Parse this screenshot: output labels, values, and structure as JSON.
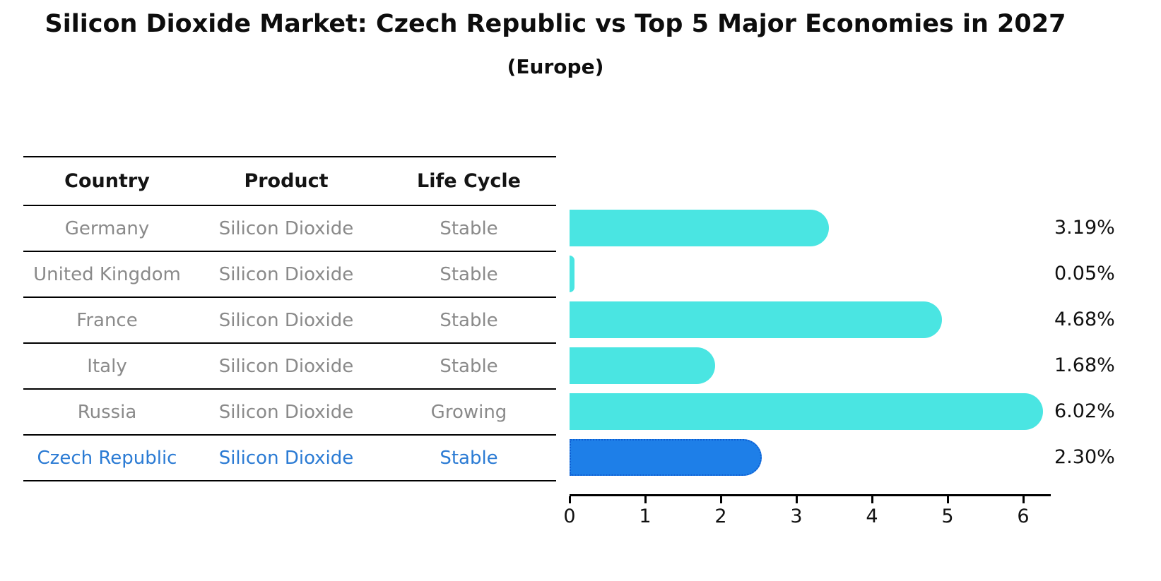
{
  "header": {
    "title": "Silicon Dioxide Market: Czech Republic vs Top 5 Major Economies in 2027",
    "subtitle": "(Europe)"
  },
  "table": {
    "columns": [
      "Country",
      "Product",
      "Life Cycle"
    ],
    "rows": [
      {
        "country": "Germany",
        "product": "Silicon Dioxide",
        "life_cycle": "Stable",
        "highlighted": false
      },
      {
        "country": "United Kingdom",
        "product": "Silicon Dioxide",
        "life_cycle": "Stable",
        "highlighted": false
      },
      {
        "country": "France",
        "product": "Silicon Dioxide",
        "life_cycle": "Stable",
        "highlighted": false
      },
      {
        "country": "Italy",
        "product": "Silicon Dioxide",
        "life_cycle": "Stable",
        "highlighted": false
      },
      {
        "country": "Russia",
        "product": "Silicon Dioxide",
        "life_cycle": "Growing",
        "highlighted": false
      },
      {
        "country": "Czech Republic",
        "product": "Silicon Dioxide",
        "life_cycle": "Stable",
        "highlighted": true
      }
    ]
  },
  "chart_data": {
    "type": "bar",
    "orientation": "horizontal",
    "title": "Silicon Dioxide Market: Czech Republic vs Top 5 Major Economies in 2027",
    "subtitle": "(Europe)",
    "categories": [
      "Germany",
      "United Kingdom",
      "France",
      "Italy",
      "Russia",
      "Czech Republic"
    ],
    "values": [
      3.19,
      0.05,
      4.68,
      1.68,
      6.02,
      2.3
    ],
    "value_labels": [
      "3.19%",
      "0.05%",
      "4.68%",
      "1.68%",
      "6.02%",
      "2.30%"
    ],
    "xlabel": "",
    "ylabel": "",
    "xlim": [
      0,
      6.35
    ],
    "xticks": [
      0,
      1,
      2,
      3,
      4,
      5,
      6
    ],
    "grid": false,
    "legend": false,
    "highlight_index": 5
  },
  "colors": {
    "bar": "#4ae5e2",
    "highlight_bar": "#1e7fe8",
    "highlight_border": "#0e5ed2",
    "highlight_text": "#2b7bd4",
    "row_text": "#8a8a8a",
    "axis": "#000000",
    "label_text": "#111111"
  }
}
